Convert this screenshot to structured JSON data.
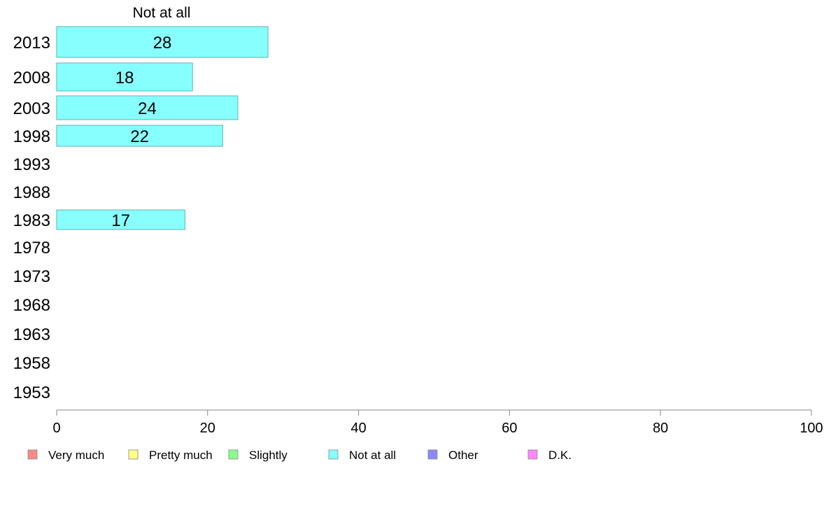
{
  "chart_data": {
    "type": "bar",
    "orientation": "horizontal",
    "title": "Not at all",
    "xlabel": "",
    "ylabel": "",
    "xlim": [
      0,
      100
    ],
    "x_ticks": [
      "0",
      "20",
      "40",
      "60",
      "80",
      "100"
    ],
    "grid": false,
    "legend_position": "bottom",
    "categories": [
      "2013",
      "2008",
      "2003",
      "1998",
      "1993",
      "1988",
      "1983",
      "1978",
      "1973",
      "1968",
      "1963",
      "1958",
      "1953"
    ],
    "series": [
      {
        "name": "Not at all",
        "color": "#88ffff",
        "values": [
          28,
          18,
          24,
          22,
          null,
          null,
          17,
          null,
          null,
          null,
          null,
          null,
          null
        ]
      }
    ],
    "legend": [
      {
        "label": "Very much",
        "color": "#ff8888"
      },
      {
        "label": "Pretty much",
        "color": "#ffff88"
      },
      {
        "label": "Slightly",
        "color": "#88ff88"
      },
      {
        "label": "Not at all",
        "color": "#88ffff"
      },
      {
        "label": "Other",
        "color": "#8888ff"
      },
      {
        "label": "D.K.",
        "color": "#ff88ff"
      }
    ]
  }
}
